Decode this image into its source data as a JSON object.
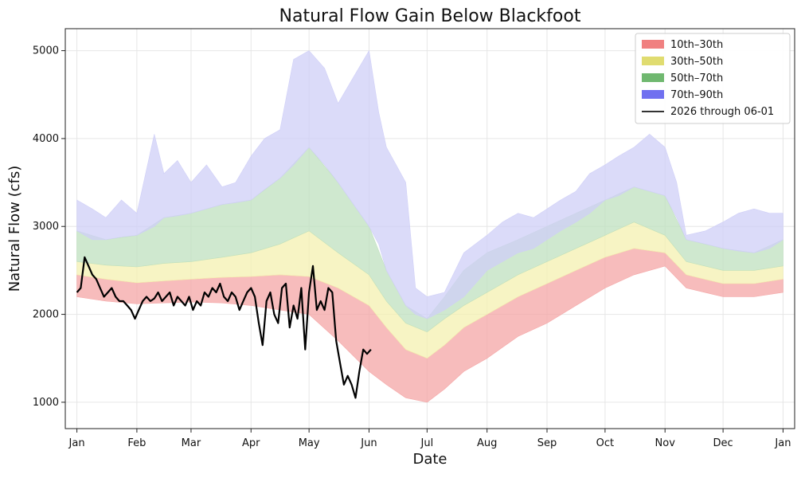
{
  "chart_data": {
    "type": "area",
    "title": "Natural Flow Gain Below Blackfoot",
    "xlabel": "Date",
    "ylabel": "Natural Flow (cfs)",
    "x_ticks": [
      {
        "label": "Jan",
        "day": 0
      },
      {
        "label": "Feb",
        "day": 31
      },
      {
        "label": "Mar",
        "day": 59
      },
      {
        "label": "Apr",
        "day": 90
      },
      {
        "label": "May",
        "day": 120
      },
      {
        "label": "Jun",
        "day": 151
      },
      {
        "label": "Jul",
        "day": 181
      },
      {
        "label": "Aug",
        "day": 212
      },
      {
        "label": "Sep",
        "day": 243
      },
      {
        "label": "Oct",
        "day": 273
      },
      {
        "label": "Nov",
        "day": 304
      },
      {
        "label": "Dec",
        "day": 334
      },
      {
        "label": "Jan",
        "day": 365
      }
    ],
    "y_ticks": [
      1000,
      2000,
      3000,
      4000,
      5000
    ],
    "xlim": [
      -6,
      371
    ],
    "ylim": [
      700,
      5250
    ],
    "grid": true,
    "legend_position": "top-right",
    "colors": {
      "band_10_30": "#f08080",
      "band_30_50": "#e8e07a",
      "band_50_70": "#7fbf7f",
      "band_70_90": "#8c8cf0",
      "line": "#000000"
    },
    "bands": [
      {
        "name": "10th–30th",
        "color": "#f4a6a6",
        "x": [
          0,
          15,
          31,
          45,
          59,
          75,
          90,
          105,
          120,
          135,
          151,
          160,
          170,
          181,
          190,
          200,
          212,
          228,
          243,
          258,
          273,
          288,
          304,
          315,
          334,
          350,
          365
        ],
        "lower": [
          2200,
          2150,
          2120,
          2130,
          2140,
          2130,
          2100,
          2050,
          2000,
          1700,
          1350,
          1200,
          1050,
          1000,
          1150,
          1350,
          1500,
          1750,
          1900,
          2100,
          2300,
          2450,
          2550,
          2300,
          2200,
          2200,
          2250
        ],
        "upper": [
          2450,
          2400,
          2360,
          2380,
          2400,
          2420,
          2430,
          2450,
          2430,
          2300,
          2100,
          1850,
          1600,
          1500,
          1650,
          1850,
          2000,
          2200,
          2350,
          2500,
          2650,
          2750,
          2700,
          2450,
          2350,
          2350,
          2400
        ]
      },
      {
        "name": "30th–50th",
        "color": "#f4f0b0",
        "x": [
          0,
          15,
          31,
          45,
          59,
          75,
          90,
          105,
          120,
          135,
          151,
          160,
          170,
          181,
          190,
          200,
          212,
          228,
          243,
          258,
          273,
          288,
          304,
          315,
          334,
          350,
          365
        ],
        "lower": [
          2450,
          2400,
          2360,
          2380,
          2400,
          2420,
          2430,
          2450,
          2430,
          2300,
          2100,
          1850,
          1600,
          1500,
          1650,
          1850,
          2000,
          2200,
          2350,
          2500,
          2650,
          2750,
          2700,
          2450,
          2350,
          2350,
          2400
        ],
        "upper": [
          2600,
          2560,
          2540,
          2580,
          2600,
          2650,
          2700,
          2800,
          2950,
          2700,
          2450,
          2150,
          1900,
          1800,
          1950,
          2100,
          2250,
          2450,
          2600,
          2750,
          2900,
          3050,
          2900,
          2600,
          2500,
          2500,
          2550
        ]
      },
      {
        "name": "50th–70th",
        "color": "#bfe0bf",
        "x": [
          0,
          15,
          31,
          45,
          59,
          75,
          90,
          105,
          120,
          135,
          151,
          160,
          170,
          181,
          190,
          200,
          212,
          228,
          243,
          258,
          273,
          288,
          304,
          315,
          334,
          350,
          365
        ],
        "lower": [
          2600,
          2560,
          2540,
          2580,
          2600,
          2650,
          2700,
          2800,
          2950,
          2700,
          2450,
          2150,
          1900,
          1800,
          1950,
          2100,
          2250,
          2450,
          2600,
          2750,
          2900,
          3050,
          2900,
          2600,
          2500,
          2500,
          2550
        ],
        "upper": [
          2950,
          2850,
          2900,
          3100,
          3150,
          3250,
          3300,
          3550,
          3900,
          3500,
          3000,
          2500,
          2100,
          1950,
          2200,
          2500,
          2700,
          2850,
          3000,
          3150,
          3300,
          3450,
          3350,
          2850,
          2750,
          2700,
          2850
        ]
      },
      {
        "name": "70th–90th",
        "color": "#cfcff7",
        "x": [
          0,
          8,
          15,
          23,
          31,
          40,
          45,
          52,
          59,
          67,
          75,
          82,
          90,
          97,
          105,
          112,
          120,
          128,
          135,
          143,
          151,
          156,
          160,
          165,
          170,
          175,
          181,
          190,
          200,
          212,
          220,
          228,
          236,
          243,
          250,
          258,
          265,
          273,
          280,
          288,
          296,
          304,
          310,
          315,
          325,
          334,
          342,
          350,
          358,
          365
        ],
        "lower": [
          2950,
          2850,
          2850,
          2880,
          2900,
          3000,
          3100,
          3120,
          3150,
          3200,
          3250,
          3270,
          3300,
          3420,
          3550,
          3700,
          3900,
          3700,
          3500,
          3250,
          3000,
          2800,
          2500,
          2300,
          2100,
          2000,
          1950,
          2050,
          2200,
          2500,
          2600,
          2700,
          2750,
          2850,
          2950,
          3050,
          3150,
          3300,
          3350,
          3450,
          3400,
          3350,
          3100,
          2850,
          2800,
          2750,
          2720,
          2700,
          2750,
          2850
        ],
        "upper": [
          3300,
          3200,
          3100,
          3300,
          3150,
          4050,
          3600,
          3750,
          3500,
          3700,
          3450,
          3500,
          3800,
          4000,
          4100,
          4900,
          5000,
          4800,
          4400,
          4700,
          5000,
          4300,
          3900,
          3700,
          3500,
          2300,
          2200,
          2250,
          2700,
          2900,
          3050,
          3150,
          3100,
          3200,
          3300,
          3400,
          3600,
          3700,
          3800,
          3900,
          4050,
          3900,
          3500,
          2900,
          2950,
          3050,
          3150,
          3200,
          3150,
          3150
        ]
      }
    ],
    "series": [
      {
        "name": "2026 through 06-01",
        "color": "#000000",
        "x": [
          0,
          2,
          4,
          6,
          8,
          10,
          12,
          14,
          16,
          18,
          20,
          22,
          24,
          26,
          28,
          30,
          32,
          34,
          36,
          38,
          40,
          42,
          44,
          46,
          48,
          50,
          52,
          54,
          56,
          58,
          60,
          62,
          64,
          66,
          68,
          70,
          72,
          74,
          76,
          78,
          80,
          82,
          84,
          86,
          88,
          90,
          92,
          94,
          96,
          98,
          100,
          102,
          104,
          106,
          108,
          110,
          112,
          114,
          116,
          118,
          120,
          122,
          124,
          126,
          128,
          130,
          132,
          134,
          136,
          138,
          140,
          142,
          144,
          146,
          148,
          150,
          152
        ],
        "y": [
          2250,
          2300,
          2650,
          2550,
          2450,
          2400,
          2300,
          2200,
          2250,
          2300,
          2200,
          2150,
          2150,
          2100,
          2050,
          1950,
          2050,
          2150,
          2200,
          2150,
          2180,
          2250,
          2150,
          2200,
          2250,
          2100,
          2200,
          2150,
          2100,
          2200,
          2050,
          2150,
          2100,
          2250,
          2200,
          2300,
          2250,
          2350,
          2200,
          2150,
          2250,
          2200,
          2050,
          2150,
          2250,
          2300,
          2200,
          1900,
          1650,
          2150,
          2250,
          2000,
          1900,
          2300,
          2350,
          1850,
          2100,
          1950,
          2300,
          1600,
          2250,
          2550,
          2050,
          2150,
          2050,
          2300,
          2250,
          1700,
          1450,
          1200,
          1300,
          1200,
          1050,
          1350,
          1600,
          1550,
          1600
        ]
      }
    ],
    "legend": [
      {
        "label": "10th–30th",
        "color": "#f08080",
        "kind": "patch"
      },
      {
        "label": "30th–50th",
        "color": "#e0dc70",
        "kind": "patch"
      },
      {
        "label": "50th–70th",
        "color": "#70b870",
        "kind": "patch"
      },
      {
        "label": "70th–90th",
        "color": "#7070f0",
        "kind": "patch"
      },
      {
        "label": "2026 through 06-01",
        "color": "#333333",
        "kind": "line"
      }
    ]
  }
}
